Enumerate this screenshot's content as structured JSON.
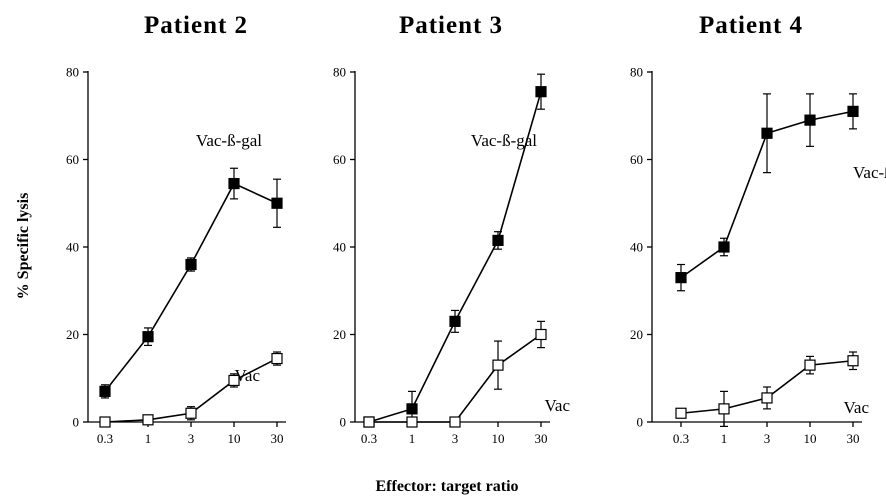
{
  "figure": {
    "ylabel": "% Specific lysis",
    "xlabel": "Effector: target ratio"
  },
  "chart_data": [
    {
      "type": "line",
      "title": "Patient 2",
      "x_categories": [
        "0.3",
        "1",
        "3",
        "10",
        "30"
      ],
      "yticks": [
        "0",
        "20",
        "40",
        "60",
        "80"
      ],
      "ylim": [
        0,
        80
      ],
      "series": [
        {
          "name": "Vac-ß-gal",
          "marker": "filled-square",
          "values": [
            7,
            19.5,
            36,
            54.5,
            50
          ],
          "errors": [
            1.5,
            2,
            1.5,
            3.5,
            5.5
          ]
        },
        {
          "name": "Vac",
          "marker": "open-square",
          "values": [
            0,
            0.5,
            2,
            9.5,
            14.5
          ],
          "errors": [
            0.5,
            0.5,
            1.5,
            1.5,
            1.5
          ]
        }
      ]
    },
    {
      "type": "line",
      "title": "Patient 3",
      "x_categories": [
        "0.3",
        "1",
        "3",
        "10",
        "30"
      ],
      "yticks": [
        "0",
        "20",
        "40",
        "60",
        "80"
      ],
      "ylim": [
        0,
        80
      ],
      "series": [
        {
          "name": "Vac-ß-gal",
          "marker": "filled-square",
          "values": [
            0,
            3,
            23,
            41.5,
            75.5
          ],
          "errors": [
            0.5,
            4,
            2.5,
            2,
            4
          ]
        },
        {
          "name": "Vac",
          "marker": "open-square",
          "values": [
            0,
            0,
            0,
            13,
            20
          ],
          "errors": [
            0,
            0,
            0,
            5.5,
            3
          ]
        }
      ]
    },
    {
      "type": "line",
      "title": "Patient 4",
      "x_categories": [
        "0.3",
        "1",
        "3",
        "10",
        "30"
      ],
      "yticks": [
        "0",
        "20",
        "40",
        "60",
        "80"
      ],
      "ylim": [
        0,
        80
      ],
      "series": [
        {
          "name": "Vac-ß-gal",
          "marker": "filled-square",
          "values": [
            33,
            40,
            66,
            69,
            71
          ],
          "errors": [
            3,
            2,
            9,
            6,
            4
          ]
        },
        {
          "name": "Vac",
          "marker": "open-square",
          "values": [
            2,
            3,
            5.5,
            13,
            14
          ],
          "errors": [
            0.5,
            4,
            2.5,
            2,
            2
          ]
        }
      ]
    }
  ]
}
